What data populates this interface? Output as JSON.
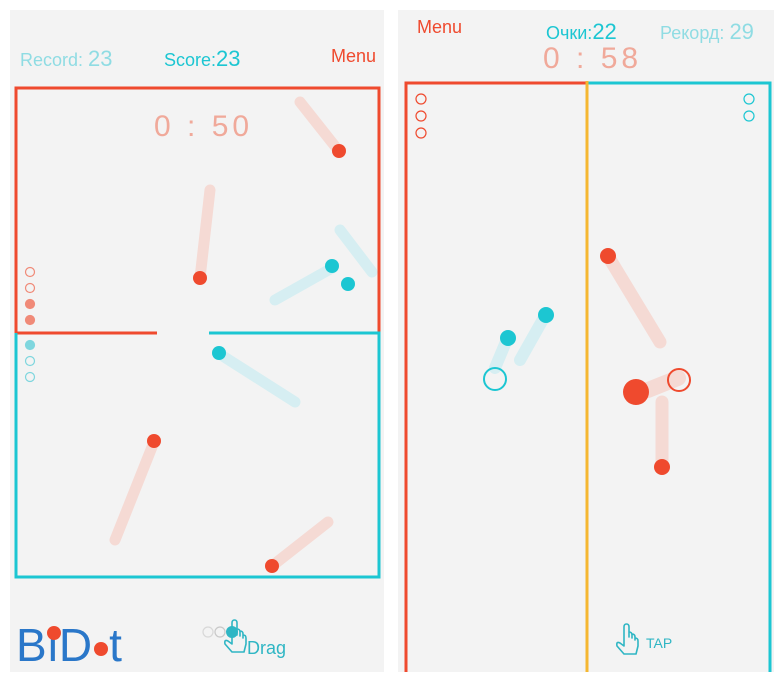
{
  "left": {
    "record_label": "Record:",
    "record_value": "23",
    "score_label": "Score:",
    "score_value": "23",
    "menu_label": "Menu",
    "timer": "0 : 50",
    "logo_parts": [
      "B",
      "i",
      "D",
      "t"
    ],
    "hint_label": "Drag",
    "red_lives": 4,
    "teal_lives": 3
  },
  "right": {
    "menu_label": "Menu",
    "score_label": "Очки:",
    "score_value": "22",
    "record_label": "Рекорд:",
    "record_value": "29",
    "timer": "0 : 58",
    "hint_label": "TAP",
    "red_lives": 3,
    "teal_lives": 2
  },
  "colors": {
    "red": "#ef4a2e",
    "teal": "#1cc6d2",
    "yellow": "#f5b731",
    "panel_bg": "#f3f3f3",
    "logo_blue": "#2a77c9"
  },
  "icons": [
    "hand-pointer-icon"
  ]
}
